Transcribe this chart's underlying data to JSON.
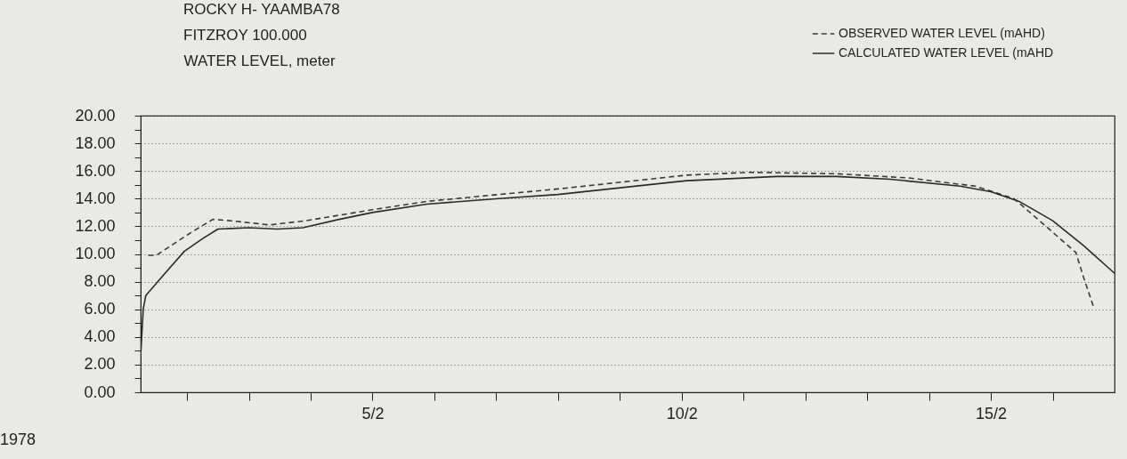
{
  "chart_data": {
    "type": "line",
    "title": "ROCKY H- YAAMBA78",
    "subtitle": "FITZROY 100.000",
    "ylabel": "WATER LEVEL, meter",
    "annotations": [
      "1978"
    ],
    "series": [
      {
        "name": "OBSERVED WATER LEVEL (mAHD)",
        "color": "#3a3a3a",
        "line_style": "dashed",
        "x": [
          "1978-02-01T09:00",
          "1978-02-01T12:00",
          "1978-02-02T02:00",
          "1978-02-02T10:00",
          "1978-02-02T17:00",
          "1978-02-03T08:00",
          "1978-02-03T22:00",
          "1978-02-05T00:00",
          "1978-02-05T21:00",
          "1978-02-07T01:00",
          "1978-02-08T00:00",
          "1978-02-10T02:00",
          "1978-02-11T02:00",
          "1978-02-12T12:00",
          "1978-02-13T16:00",
          "1978-02-14T18:00",
          "1978-02-15T09:00",
          "1978-02-15T22:00",
          "1978-02-16T09:00",
          "1978-02-16T12:00",
          "1978-02-16T16:00"
        ],
        "values": [
          9.9,
          9.9,
          11.6,
          12.5,
          12.4,
          12.1,
          12.4,
          13.2,
          13.8,
          14.3,
          14.7,
          15.7,
          15.9,
          15.8,
          15.5,
          14.9,
          14.0,
          11.9,
          10.1,
          8.3,
          6.1
        ]
      },
      {
        "name": "CALCULATED WATER LEVEL (mAHD",
        "color": "#2a2a2a",
        "line_style": "solid",
        "x": [
          "1978-02-01T06:00",
          "1978-02-01T07:00",
          "1978-02-01T08:00",
          "1978-02-01T15:00",
          "1978-02-01T23:00",
          "1978-02-02T06:00",
          "1978-02-02T12:00",
          "1978-02-03T00:00",
          "1978-02-03T11:00",
          "1978-02-03T21:00",
          "1978-02-04T11:00",
          "1978-02-05T00:00",
          "1978-02-05T21:00",
          "1978-02-07T01:00",
          "1978-02-08T00:00",
          "1978-02-10T02:00",
          "1978-02-11T13:00",
          "1978-02-12T12:00",
          "1978-02-13T09:00",
          "1978-02-14T12:00",
          "1978-02-15T00:00",
          "1978-02-15T11:00",
          "1978-02-16T00:00",
          "1978-02-16T12:00",
          "1978-02-17T00:00"
        ],
        "values": [
          2.6,
          6.0,
          7.0,
          8.5,
          10.2,
          11.1,
          11.8,
          11.9,
          11.8,
          11.9,
          12.5,
          13.0,
          13.6,
          14.0,
          14.3,
          15.3,
          15.6,
          15.6,
          15.4,
          14.9,
          14.5,
          13.8,
          12.4,
          10.6,
          8.6
        ]
      }
    ],
    "xlim": [
      "1978-02-01T06:00",
      "1978-02-17T00:00"
    ],
    "xticks": [
      {
        "value": "1978-02-02",
        "label": null
      },
      {
        "value": "1978-02-03",
        "label": null
      },
      {
        "value": "1978-02-04",
        "label": null
      },
      {
        "value": "1978-02-05",
        "label": "5/2"
      },
      {
        "value": "1978-02-06",
        "label": null
      },
      {
        "value": "1978-02-07",
        "label": null
      },
      {
        "value": "1978-02-08",
        "label": null
      },
      {
        "value": "1978-02-09",
        "label": null
      },
      {
        "value": "1978-02-10",
        "label": "10/2"
      },
      {
        "value": "1978-02-11",
        "label": null
      },
      {
        "value": "1978-02-12",
        "label": null
      },
      {
        "value": "1978-02-13",
        "label": null
      },
      {
        "value": "1978-02-14",
        "label": null
      },
      {
        "value": "1978-02-15",
        "label": "15/2"
      },
      {
        "value": "1978-02-16",
        "label": null
      }
    ],
    "ylim": [
      0,
      20
    ],
    "yticks": [
      {
        "value": 0,
        "label": "0.00"
      },
      {
        "value": 1,
        "label": null
      },
      {
        "value": 2,
        "label": "2.00"
      },
      {
        "value": 3,
        "label": null
      },
      {
        "value": 4,
        "label": "4.00"
      },
      {
        "value": 5,
        "label": null
      },
      {
        "value": 6,
        "label": "6.00"
      },
      {
        "value": 7,
        "label": null
      },
      {
        "value": 8,
        "label": "8.00"
      },
      {
        "value": 9,
        "label": null
      },
      {
        "value": 10,
        "label": "10.00"
      },
      {
        "value": 11,
        "label": null
      },
      {
        "value": 12,
        "label": "12.00"
      },
      {
        "value": 13,
        "label": null
      },
      {
        "value": 14,
        "label": "14.00"
      },
      {
        "value": 15,
        "label": null
      },
      {
        "value": 16,
        "label": "16.00"
      },
      {
        "value": 17,
        "label": null
      },
      {
        "value": 18,
        "label": "18.00"
      },
      {
        "value": 19,
        "label": null
      },
      {
        "value": 20,
        "label": "20.00"
      }
    ],
    "grid": true,
    "legend": "top right"
  }
}
